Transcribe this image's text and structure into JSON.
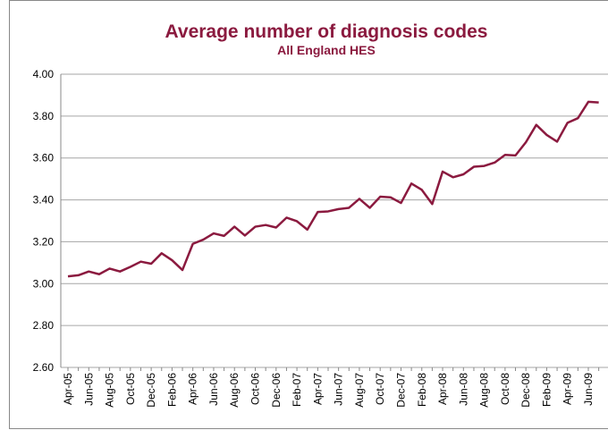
{
  "chart_data": {
    "type": "line",
    "title": "Average number of diagnosis codes",
    "subtitle": "All England HES",
    "categories": [
      "Apr-05",
      null,
      "Jun-05",
      null,
      "Aug-05",
      null,
      "Oct-05",
      null,
      "Dec-05",
      null,
      "Feb-06",
      null,
      "Apr-06",
      null,
      "Jun-06",
      null,
      "Aug-06",
      null,
      "Oct-06",
      null,
      "Dec-06",
      null,
      "Feb-07",
      null,
      "Apr-07",
      null,
      "Jun-07",
      null,
      "Aug-07",
      null,
      "Oct-07",
      null,
      "Dec-07",
      null,
      "Feb-08",
      null,
      "Apr-08",
      null,
      "Jun-08",
      null,
      "Aug-08",
      null,
      "Oct-08",
      null,
      "Dec-08",
      null,
      "Feb-09",
      null,
      "Apr-09",
      null,
      "Jun-09",
      null
    ],
    "series": [
      {
        "color": "#8b1a3f",
        "values": [
          3.035,
          3.04,
          3.058,
          3.045,
          3.072,
          3.058,
          3.08,
          3.105,
          3.095,
          3.145,
          3.112,
          3.065,
          3.19,
          3.21,
          3.24,
          3.228,
          3.272,
          3.23,
          3.272,
          3.28,
          3.268,
          3.315,
          3.298,
          3.258,
          3.342,
          3.345,
          3.356,
          3.362,
          3.405,
          3.362,
          3.415,
          3.412,
          3.385,
          3.478,
          3.448,
          3.38,
          3.535,
          3.508,
          3.522,
          3.558,
          3.562,
          3.578,
          3.615,
          3.612,
          3.675,
          3.758,
          3.71,
          3.678,
          3.768,
          3.79,
          3.868,
          3.865
        ]
      }
    ],
    "ylim": [
      2.6,
      4.0
    ],
    "yticks": [
      {
        "value": 2.6,
        "label": "2.60"
      },
      {
        "value": 2.8,
        "label": "2.80"
      },
      {
        "value": 3.0,
        "label": "3.00"
      },
      {
        "value": 3.2,
        "label": "3.20"
      },
      {
        "value": 3.4,
        "label": "3.40"
      },
      {
        "value": 3.6,
        "label": "3.60"
      },
      {
        "value": 3.8,
        "label": "3.80"
      },
      {
        "value": 4.0,
        "label": "4.00"
      }
    ],
    "grid": true
  }
}
